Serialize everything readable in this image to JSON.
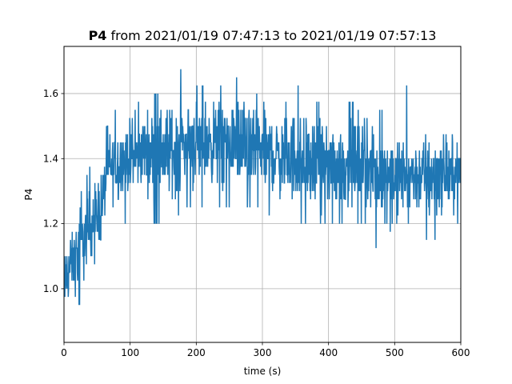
{
  "chart_data": {
    "type": "line",
    "title_bold": "P4",
    "title_rest": " from 2021/01/19 07:47:13 to 2021/01/19 07:57:13",
    "xlabel": "time (s)",
    "ylabel": "P4",
    "xlim": [
      0,
      600
    ],
    "ylim": [
      0.835,
      1.745
    ],
    "grid": true,
    "x_ticks": [
      0,
      100,
      200,
      300,
      400,
      500,
      600
    ],
    "y_ticks": [
      1.0,
      1.2,
      1.4,
      1.6
    ],
    "x_tick_labels": [
      "0",
      "100",
      "200",
      "300",
      "400",
      "500",
      "600"
    ],
    "y_tick_labels": [
      "1.0",
      "1.2",
      "1.4",
      "1.6"
    ],
    "series": [
      {
        "color": "#1f77b4",
        "quantization_step": 0.025,
        "envelope": {
          "x": [
            0,
            5,
            10,
            20,
            30,
            40,
            50,
            60,
            63,
            70,
            80,
            90,
            100,
            120,
            140,
            160,
            190,
            200,
            230,
            260,
            265,
            280,
            300,
            330,
            360,
            380,
            400,
            430,
            460,
            470,
            480,
            500,
            520,
            540,
            555,
            570,
            600
          ],
          "lo": [
            0.875,
            0.875,
            0.95,
            0.95,
            0.975,
            1.075,
            1.075,
            1.1,
            1.2,
            1.2,
            1.2,
            1.2,
            1.225,
            1.225,
            1.2,
            1.225,
            1.25,
            1.25,
            1.25,
            1.25,
            1.25,
            1.25,
            1.25,
            1.2,
            1.2,
            1.2,
            1.2,
            1.2,
            1.2,
            1.125,
            1.15,
            1.2,
            1.2,
            1.2,
            1.125,
            1.2,
            1.2
          ],
          "hi": [
            1.1,
            1.2,
            1.225,
            1.25,
            1.325,
            1.375,
            1.375,
            1.5,
            1.5,
            1.5,
            1.55,
            1.5,
            1.55,
            1.575,
            1.6,
            1.625,
            1.7,
            1.625,
            1.625,
            1.625,
            1.7,
            1.625,
            1.6,
            1.575,
            1.625,
            1.575,
            1.575,
            1.575,
            1.525,
            1.525,
            1.55,
            1.575,
            1.625,
            1.575,
            1.575,
            1.5,
            1.45
          ],
          "mid": [
            1.0,
            1.05,
            1.075,
            1.1,
            1.15,
            1.2,
            1.225,
            1.275,
            1.35,
            1.375,
            1.375,
            1.4,
            1.4,
            1.425,
            1.425,
            1.425,
            1.45,
            1.45,
            1.45,
            1.45,
            1.45,
            1.425,
            1.425,
            1.4,
            1.4,
            1.375,
            1.375,
            1.375,
            1.375,
            1.35,
            1.35,
            1.35,
            1.35,
            1.35,
            1.35,
            1.35,
            1.35
          ]
        }
      }
    ]
  }
}
